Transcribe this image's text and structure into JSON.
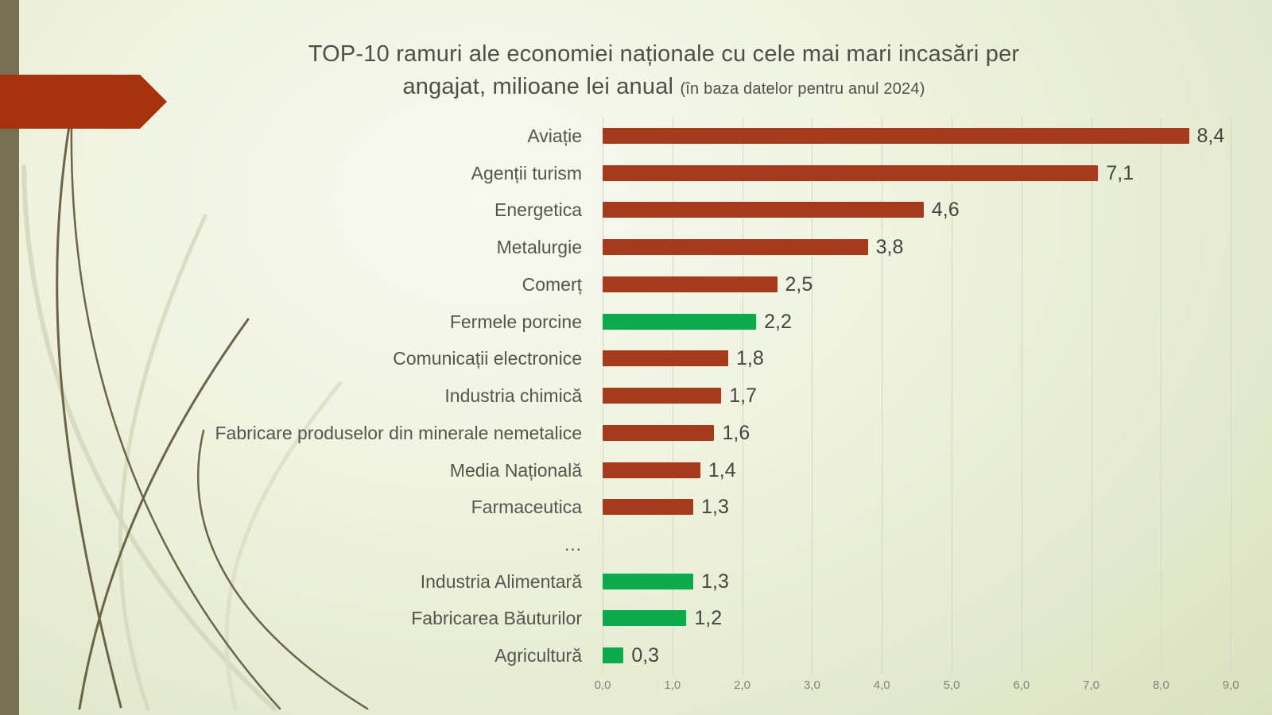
{
  "slide": {
    "title_line1": "TOP-10 ramuri ale economiei naționale cu cele mai mari incasări per",
    "title_line2_main": "angajat, milioane lei anual ",
    "title_line2_note": "(în baza datelor pentru anul 2024)"
  },
  "colors": {
    "bar_red": "#A53A1D",
    "bar_green": "#0AAA4D",
    "arrow_red": "#A5340E",
    "edge_strip_olive": "#767051",
    "gridline": "#D3D5CA",
    "title_text": "#4F4F49",
    "category_text": "#55554E",
    "value_text": "#45453F",
    "tick_text": "#82827A"
  },
  "chart_data": {
    "type": "bar",
    "orientation": "horizontal",
    "title": "TOP-10 ramuri ale economiei naționale cu cele mai mari incasări per angajat, milioane lei anual (în baza datelor pentru anul 2024)",
    "xlabel": "",
    "ylabel": "",
    "xlim": [
      0,
      9
    ],
    "grid": "vertical-gridlines-on",
    "legend": "none",
    "x_ticks": [
      "0,0",
      "1,0",
      "2,0",
      "3,0",
      "4,0",
      "5,0",
      "6,0",
      "7,0",
      "8,0",
      "9,0"
    ],
    "rows": [
      {
        "label": "Aviație",
        "value": 8.4,
        "value_label": "8,4",
        "color": "red"
      },
      {
        "label": "Agenții turism",
        "value": 7.1,
        "value_label": "7,1",
        "color": "red"
      },
      {
        "label": "Energetica",
        "value": 4.6,
        "value_label": "4,6",
        "color": "red"
      },
      {
        "label": "Metalurgie",
        "value": 3.8,
        "value_label": "3,8",
        "color": "red"
      },
      {
        "label": "Comerț",
        "value": 2.5,
        "value_label": "2,5",
        "color": "red"
      },
      {
        "label": "Fermele porcine",
        "value": 2.2,
        "value_label": "2,2",
        "color": "green"
      },
      {
        "label": "Comunicații electronice",
        "value": 1.8,
        "value_label": "1,8",
        "color": "red"
      },
      {
        "label": "Industria chimică",
        "value": 1.7,
        "value_label": "1,7",
        "color": "red"
      },
      {
        "label": "Fabricare produselor din minerale nemetalice",
        "value": 1.6,
        "value_label": "1,6",
        "color": "red"
      },
      {
        "label": "Media Națională",
        "value": 1.4,
        "value_label": "1,4",
        "color": "red"
      },
      {
        "label": "Farmaceutica",
        "value": 1.3,
        "value_label": "1,3",
        "color": "red"
      },
      {
        "label": "…",
        "value": null,
        "value_label": "",
        "color": null
      },
      {
        "label": "Industria Alimentară",
        "value": 1.3,
        "value_label": "1,3",
        "color": "green"
      },
      {
        "label": "Fabricarea Băuturilor",
        "value": 1.2,
        "value_label": "1,2",
        "color": "green"
      },
      {
        "label": "Agricultură",
        "value": 0.3,
        "value_label": "0,3",
        "color": "green"
      }
    ]
  }
}
